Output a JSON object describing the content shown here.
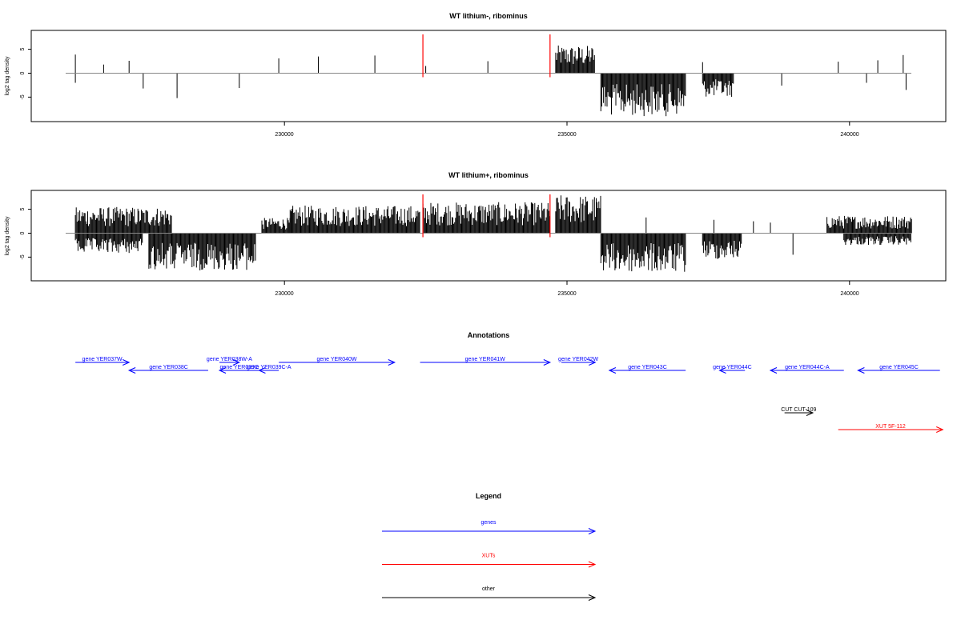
{
  "colors": {
    "gene": "#0000ff",
    "xut": "#ff0000",
    "other": "#000000",
    "marker": "#ff0000",
    "axis": "#000000",
    "baseline": "#888888"
  },
  "chart_data": [
    {
      "type": "bar",
      "title": "WT lithium-, ribominus",
      "ylabel": "log2 tag density",
      "xlim": [
        226300,
        241200
      ],
      "ylim": [
        -9,
        8.5
      ],
      "xticks": [
        230000,
        235000,
        240000
      ],
      "xtick_labels": [
        "230000",
        "235000",
        "240000"
      ],
      "yticks": [
        -5,
        0,
        5
      ],
      "ytick_labels": [
        "-5",
        "0",
        "5"
      ],
      "markers": [
        232450,
        234700
      ],
      "plus_segments": [
        [
          226300,
          226320,
          3.9
        ],
        [
          226800,
          226820,
          1.8
        ],
        [
          227250,
          227270,
          2.6
        ],
        [
          229900,
          229920,
          3.1
        ],
        [
          230600,
          230620,
          3.5
        ],
        [
          231600,
          231620,
          3.7
        ],
        [
          232500,
          232520,
          1.5
        ],
        [
          233600,
          233620,
          2.5
        ],
        [
          234800,
          235500,
          5.8
        ],
        [
          237400,
          237420,
          2.3
        ],
        [
          239800,
          239820,
          2.4
        ],
        [
          240500,
          240520,
          2.7
        ],
        [
          240950,
          240970,
          3.8
        ]
      ],
      "minus_segments": [
        [
          226300,
          226320,
          -2.0
        ],
        [
          227500,
          227520,
          -3.2
        ],
        [
          228100,
          228120,
          -5.2
        ],
        [
          229200,
          229220,
          -3.1
        ],
        [
          235600,
          237100,
          -9.0
        ],
        [
          237400,
          237950,
          -5.0
        ],
        [
          238800,
          238820,
          -2.6
        ],
        [
          240300,
          240320,
          -2.0
        ],
        [
          241000,
          241020,
          -3.5
        ]
      ]
    },
    {
      "type": "bar",
      "title": "WT lithium+, ribominus",
      "ylabel": "log2 tag density",
      "xlim": [
        226300,
        241200
      ],
      "ylim": [
        -9,
        8.5
      ],
      "xticks": [
        230000,
        235000,
        240000
      ],
      "xtick_labels": [
        "230000",
        "235000",
        "240000"
      ],
      "yticks": [
        -5,
        0,
        5
      ],
      "ytick_labels": [
        "-5",
        "0",
        "5"
      ],
      "markers": [
        232450,
        234700
      ],
      "plus_segments": [
        [
          226300,
          228000,
          5.5
        ],
        [
          229600,
          230100,
          3.2
        ],
        [
          230100,
          232400,
          5.8
        ],
        [
          232450,
          234700,
          6.5
        ],
        [
          234800,
          235600,
          8.0
        ],
        [
          236400,
          236420,
          3.3
        ],
        [
          237600,
          237620,
          2.8
        ],
        [
          238300,
          238320,
          2.5
        ],
        [
          238600,
          238620,
          2.2
        ],
        [
          239600,
          241100,
          3.7
        ]
      ],
      "minus_segments": [
        [
          226300,
          227500,
          -4.2
        ],
        [
          227600,
          229500,
          -7.8
        ],
        [
          235600,
          237100,
          -8.3
        ],
        [
          237400,
          238100,
          -5.5
        ],
        [
          239000,
          239020,
          -4.5
        ],
        [
          239900,
          241100,
          -2.5
        ]
      ]
    }
  ],
  "annotations": {
    "title": "Annotations",
    "genes": [
      {
        "label": "gene YER037W",
        "x_start": 226300,
        "x_end": 227250,
        "direction": "right",
        "row": 0
      },
      {
        "label": "gene YER038C",
        "x_start": 227250,
        "x_end": 228650,
        "direction": "left",
        "row": 1
      },
      {
        "label": "gene YER038W-A",
        "x_start": 228850,
        "x_end": 229200,
        "direction": "right",
        "row": 0
      },
      {
        "label": "gene YER039C",
        "x_start": 228850,
        "x_end": 229550,
        "direction": "left",
        "row": 1
      },
      {
        "label": "gene YER039C-A",
        "x_start": 229550,
        "x_end": 229900,
        "direction": "left",
        "row": 1
      },
      {
        "label": "gene YER040W",
        "x_start": 229900,
        "x_end": 231950,
        "direction": "right",
        "row": 0
      },
      {
        "label": "gene YER041W",
        "x_start": 232400,
        "x_end": 234700,
        "direction": "right",
        "row": 0
      },
      {
        "label": "gene YER042W",
        "x_start": 234900,
        "x_end": 235500,
        "direction": "right",
        "row": 0
      },
      {
        "label": "gene YER043C",
        "x_start": 235750,
        "x_end": 237100,
        "direction": "left",
        "row": 1
      },
      {
        "label": "gene YER044C",
        "x_start": 237700,
        "x_end": 238150,
        "direction": "left",
        "row": 1
      },
      {
        "label": "gene YER044C-A",
        "x_start": 238600,
        "x_end": 239900,
        "direction": "left",
        "row": 1
      },
      {
        "label": "gene YER045C",
        "x_start": 240150,
        "x_end": 241600,
        "direction": "left",
        "row": 1
      }
    ],
    "cuts": [
      {
        "label": "CUT CUT-109",
        "x_start": 238850,
        "x_end": 239350,
        "direction": "right"
      }
    ],
    "xuts": [
      {
        "label": "XUT 5F-112",
        "x_start": 239800,
        "x_end": 241650,
        "direction": "right"
      }
    ]
  },
  "legend": {
    "title": "Legend",
    "items": [
      {
        "label": "genes",
        "color": "#0000ff"
      },
      {
        "label": "XUTs",
        "color": "#ff0000"
      },
      {
        "label": "other",
        "color": "#000000"
      }
    ]
  }
}
